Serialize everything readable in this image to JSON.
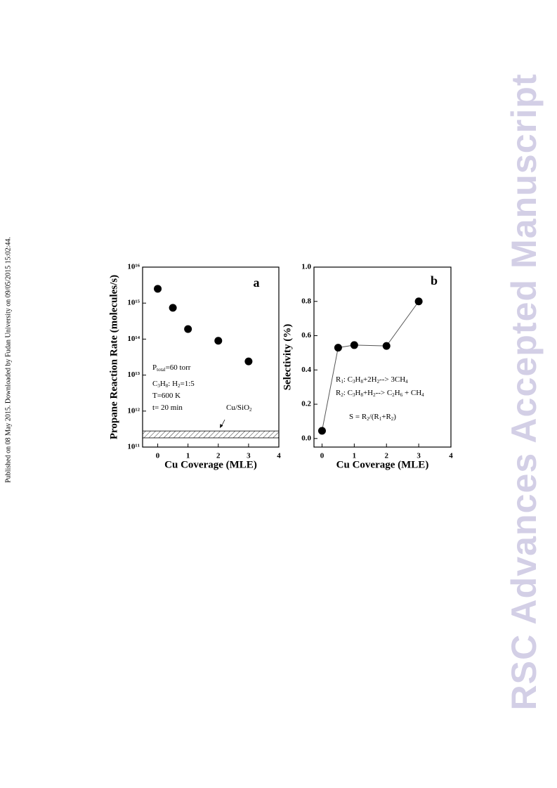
{
  "sidebar_text": "Published on 08 May 2015. Downloaded by Fudan University on 09/05/2015 15:02:44.",
  "watermark": "RSC Advances Accepted Manuscript",
  "chart_data": [
    {
      "type": "scatter",
      "label": "a",
      "log_y": true,
      "x_label": "Cu Coverage (MLE)",
      "y_label": "Propane Reaction Rate (molecules/s)",
      "x": [
        0,
        0.5,
        1,
        2,
        3
      ],
      "values": [
        2500000000000000.0,
        740000000000000.0,
        190000000000000.0,
        90000000000000.0,
        24000000000000.0
      ],
      "color": "#000000",
      "xlim": [
        -0.5,
        4
      ],
      "xticks": [
        0,
        1,
        2,
        3,
        4
      ],
      "ylim": [
        100000000000.0,
        1e+16
      ],
      "yticks": [
        {
          "value": 100000000000.0,
          "label": "10¹¹"
        },
        {
          "value": 1000000000000.0,
          "label": "10¹²"
        },
        {
          "value": 10000000000000.0,
          "label": "10¹³"
        },
        {
          "value": 100000000000000.0,
          "label": "10¹⁴"
        },
        {
          "value": 1000000000000000.0,
          "label": "10¹⁵"
        },
        {
          "value": 1e+16,
          "label": "10¹⁶"
        }
      ],
      "band": {
        "range": [
          180000000000.0,
          280000000000.0
        ],
        "label": [
          {
            "t": "Cu/SiO"
          },
          {
            "sub": "2"
          }
        ]
      },
      "annotations": [
        [
          {
            "t": "P"
          },
          {
            "sub": "total"
          },
          {
            "t": "=60 torr"
          }
        ],
        [
          {
            "t": "C"
          },
          {
            "sub": "3"
          },
          {
            "t": "H"
          },
          {
            "sub": "8"
          },
          {
            "t": ": H"
          },
          {
            "sub": "2"
          },
          {
            "t": "=1:5"
          }
        ],
        [
          {
            "t": "T=600 K"
          }
        ],
        [
          {
            "t": "t= 20 min"
          }
        ]
      ]
    },
    {
      "type": "line",
      "label": "b",
      "x_label": "Cu Coverage (MLE)",
      "y_label": "Selectivity (%)",
      "x": [
        0,
        0.5,
        1,
        2,
        3
      ],
      "values": [
        0.045,
        0.53,
        0.545,
        0.54,
        0.8
      ],
      "color": "#000000",
      "xlim": [
        -0.25,
        4
      ],
      "xticks": [
        0,
        1,
        2,
        3,
        4
      ],
      "ylim": [
        -0.05,
        1.0
      ],
      "yticks": [
        {
          "value": 0,
          "label": "0.0"
        },
        0.2,
        0.4,
        0.6,
        0.8,
        {
          "value": 1,
          "label": "1.0"
        }
      ],
      "annotations": [
        [
          {
            "t": "R"
          },
          {
            "sub": "1"
          },
          {
            "t": ": C"
          },
          {
            "sub": "3"
          },
          {
            "t": "H"
          },
          {
            "sub": "8"
          },
          {
            "t": "+2H"
          },
          {
            "sub": "2"
          },
          {
            "t": "--> 3CH"
          },
          {
            "sub": "4"
          }
        ],
        [
          {
            "t": "R"
          },
          {
            "sub": "2"
          },
          {
            "t": ": C"
          },
          {
            "sub": "3"
          },
          {
            "t": "H"
          },
          {
            "sub": "8"
          },
          {
            "t": "+H"
          },
          {
            "sub": "2"
          },
          {
            "t": "--> C"
          },
          {
            "sub": "2"
          },
          {
            "t": "H"
          },
          {
            "sub": "6"
          },
          {
            "t": " + CH"
          },
          {
            "sub": "4"
          }
        ],
        [
          {
            "t": "S = R"
          },
          {
            "sub": "2"
          },
          {
            "t": "/(R"
          },
          {
            "sub": "1"
          },
          {
            "t": "+R"
          },
          {
            "sub": "2"
          },
          {
            "t": ")"
          }
        ]
      ]
    }
  ]
}
